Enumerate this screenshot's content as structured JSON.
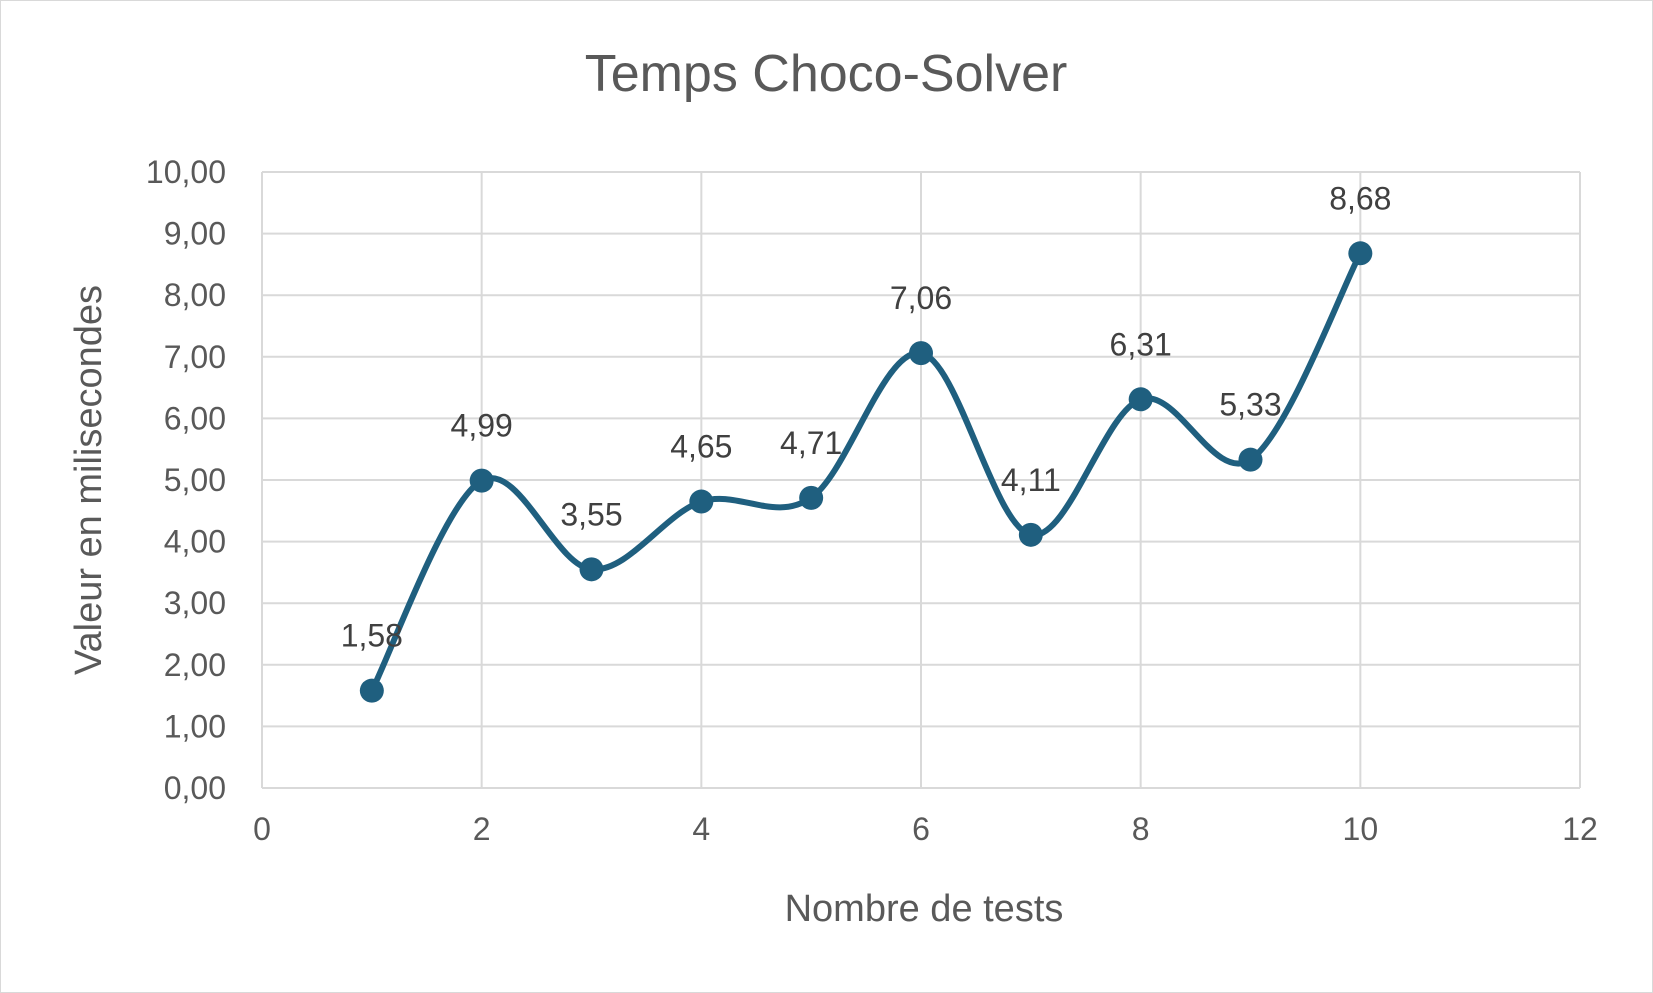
{
  "chart_data": {
    "type": "scatter",
    "title": "Temps Choco-Solver",
    "xlabel": "Nombre de tests",
    "ylabel": "Valeur en milisecondes",
    "xlim": [
      0,
      12
    ],
    "ylim": [
      0,
      10
    ],
    "x_ticks": [
      "0",
      "2",
      "4",
      "6",
      "8",
      "10",
      "12"
    ],
    "y_ticks": [
      "0,00",
      "1,00",
      "2,00",
      "3,00",
      "4,00",
      "5,00",
      "6,00",
      "7,00",
      "8,00",
      "9,00",
      "10,00"
    ],
    "grid": true,
    "smooth_line": true,
    "legend": "none",
    "series_color": "#1f5f7f",
    "series": [
      {
        "x": [
          1,
          2,
          3,
          4,
          5,
          6,
          7,
          8,
          9,
          10
        ],
        "y": [
          1.58,
          4.99,
          3.55,
          4.65,
          4.71,
          7.06,
          4.11,
          6.31,
          5.33,
          8.68
        ],
        "labels": [
          "1,58",
          "4,99",
          "3,55",
          "4,65",
          "4,71",
          "7,06",
          "4,11",
          "6,31",
          "5,33",
          "8,68"
        ]
      }
    ]
  }
}
